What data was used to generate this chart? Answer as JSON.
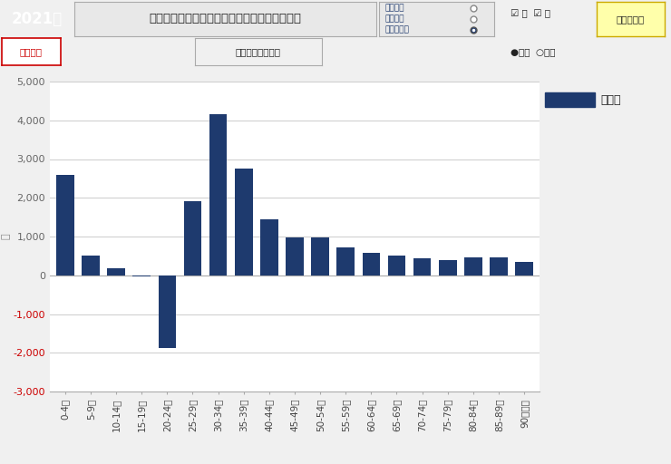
{
  "categories": [
    "0-4歳",
    "5-9歳",
    "10-14歳",
    "15-19歳",
    "20-24歳",
    "25-29歳",
    "30-34歳",
    "35-39歳",
    "40-44歳",
    "45-49歳",
    "50-54歳",
    "55-59歳",
    "60-64歳",
    "65-69歳",
    "70-74歳",
    "75-79歳",
    "80-84歳",
    "85-89歳",
    "90歳以上"
  ],
  "values": [
    2600,
    520,
    180,
    -30,
    -1870,
    1920,
    4150,
    2750,
    1450,
    980,
    970,
    730,
    590,
    520,
    430,
    390,
    470,
    470,
    350
  ],
  "bar_color": "#1e3a6e",
  "ylim": [
    -3000,
    5000
  ],
  "yticks": [
    -3000,
    -2000,
    -1000,
    0,
    1000,
    2000,
    3000,
    4000,
    5000
  ],
  "ylabel": "人",
  "title_year": "2021年",
  "title_main": "埼玉県の東京都との年齢別純移動人口（男女）",
  "legend_label": "東京都",
  "fig_bg": "#f0f0f0",
  "plot_bg": "#ffffff",
  "grid_color": "#cccccc",
  "header_green_bg": "#3a6635",
  "header_green_text": "#ffffff",
  "header_title_bg": "#e8e8e8",
  "header_border": "#aaaaaa",
  "ytick_neg_color": "#cc0000",
  "ytick_pos_color": "#666666",
  "radio_label_color": "#1e3a6e",
  "radio_bg": "#e8e8e8",
  "radio_border": "#aaaaaa",
  "btn_expand_bg": "#ffffaa",
  "btn_expand_border": "#ccaa00",
  "btn_op_border": "#cc0000",
  "btn_op_text": "#cc0000",
  "btn_jp_bg": "#f0f0f0",
  "btn_jp_border": "#aaaaaa"
}
